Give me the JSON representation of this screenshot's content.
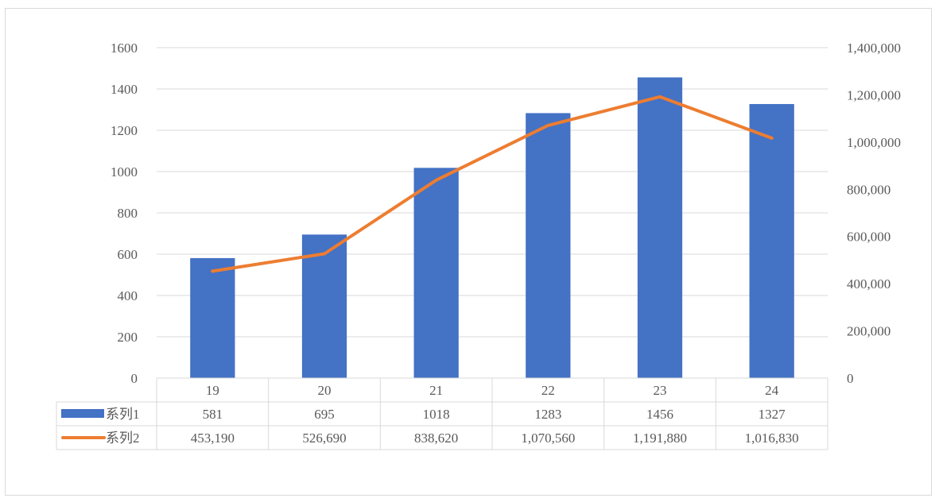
{
  "chart_data": {
    "type": "bar",
    "categories": [
      "19",
      "20",
      "21",
      "22",
      "23",
      "24"
    ],
    "series": [
      {
        "name": "系列1",
        "type": "bar",
        "axis": "left",
        "color": "#4472c4",
        "values": [
          581,
          695,
          1018,
          1283,
          1456,
          1327
        ],
        "labels": [
          "581",
          "695",
          "1018",
          "1283",
          "1456",
          "1327"
        ]
      },
      {
        "name": "系列2",
        "type": "line",
        "axis": "right",
        "color": "#ed7d31",
        "values": [
          453190,
          526690,
          838620,
          1070560,
          1191880,
          1016830
        ],
        "labels": [
          "453,190",
          "526,690",
          "838,620",
          "1,070,560",
          "1,191,880",
          "1,016,830"
        ]
      }
    ],
    "y_left": {
      "range": [
        0,
        1600
      ],
      "ticks": [
        0,
        200,
        400,
        600,
        800,
        1000,
        1200,
        1400,
        1600
      ],
      "tick_labels": [
        "0",
        "200",
        "400",
        "600",
        "800",
        "1000",
        "1200",
        "1400",
        "1600"
      ]
    },
    "y_right": {
      "range": [
        0,
        1400000
      ],
      "ticks": [
        0,
        200000,
        400000,
        600000,
        800000,
        1000000,
        1200000,
        1400000
      ],
      "tick_labels": [
        "0",
        "200,000",
        "400,000",
        "600,000",
        "800,000",
        "1,000,000",
        "1,200,000",
        "1,400,000"
      ]
    },
    "grid": true,
    "legend": "data-table",
    "data_table": true,
    "title": "",
    "xlabel": "",
    "ylabel": ""
  }
}
